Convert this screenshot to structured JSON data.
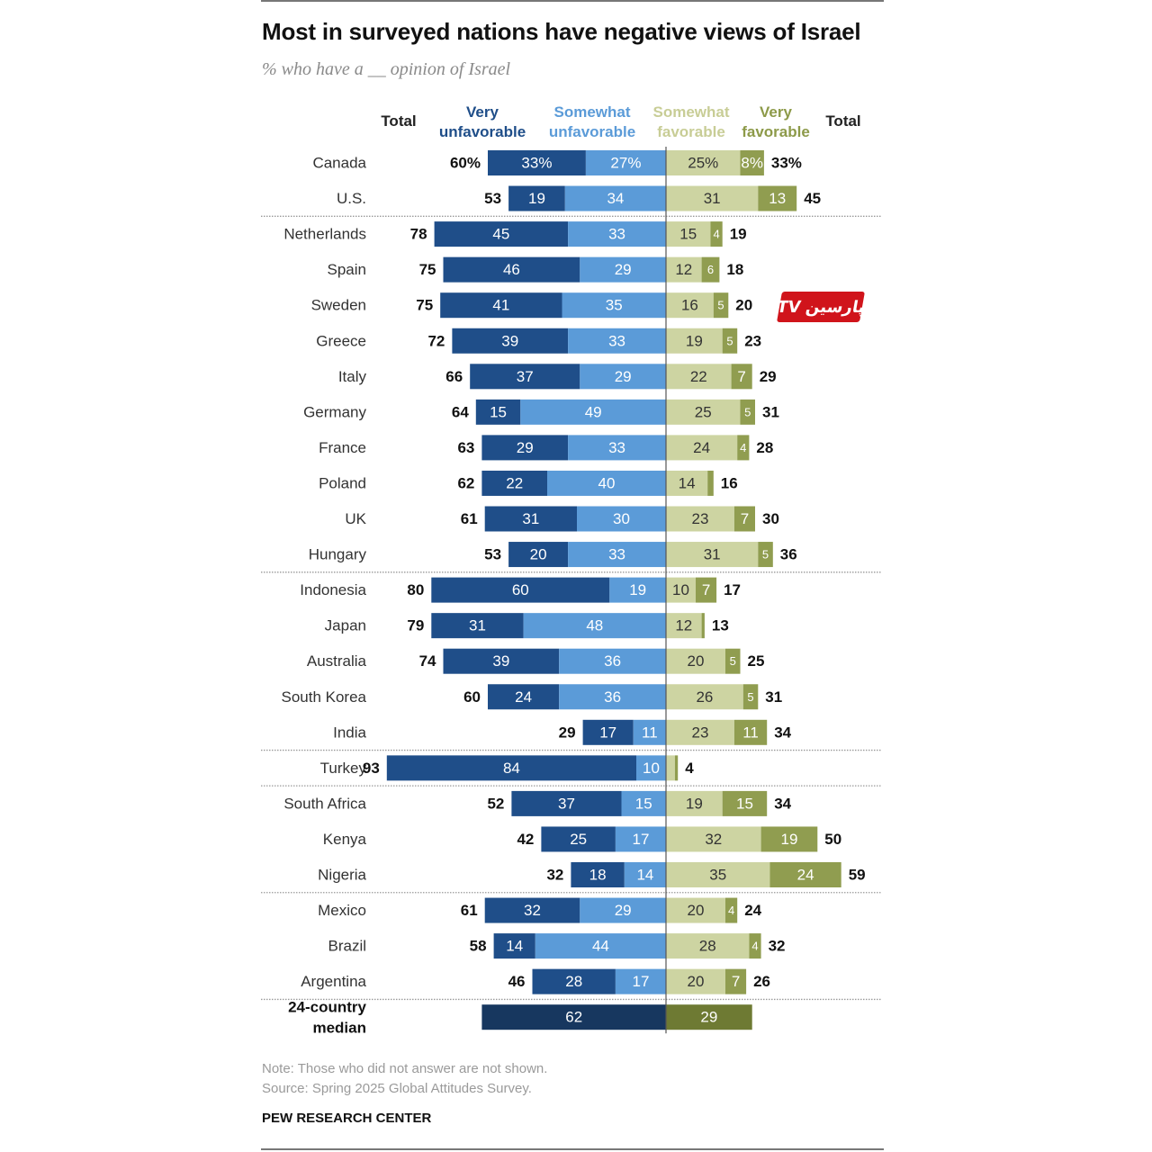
{
  "title": "Most in surveyed nations have negative views of Israel",
  "subtitle": "% who have a __ opinion of Israel",
  "headers": {
    "total_left": "Total",
    "very_unfavorable": [
      "Very",
      "unfavorable"
    ],
    "somewhat_unfavorable": [
      "Somewhat",
      "unfavorable"
    ],
    "somewhat_favorable": [
      "Somewhat",
      "favorable"
    ],
    "very_favorable": [
      "Very",
      "favorable"
    ],
    "total_right": "Total"
  },
  "note": "Note: Those who did not answer are not shown.",
  "source": "Source: Spring 2025 Global Attitudes Survey.",
  "branding": "PEW RESEARCH CENTER",
  "watermark_text": "پارسین",
  "watermark_logo": "TV",
  "colors": {
    "very_unfavorable": "#1f4e89",
    "somewhat_unfavorable": "#5b9bd8",
    "somewhat_favorable": "#cdd4a2",
    "very_favorable": "#909d50",
    "median_unfavorable": "#17375f",
    "median_favorable": "#6e7a33",
    "somewhat_favorable_header": "#c8cd96",
    "very_favorable_header": "#8d9a49",
    "very_unfavorable_header": "#1f4e89",
    "somewhat_unfavorable_header": "#5b9bd8"
  },
  "chart_data": {
    "type": "bar",
    "orientation": "horizontal-diverging",
    "title": "Most in surveyed nations have negative views of Israel",
    "subtitle": "% who have a __ opinion of Israel",
    "series_names": [
      "Very unfavorable",
      "Somewhat unfavorable",
      "Somewhat favorable",
      "Very favorable"
    ],
    "groups": [
      [
        {
          "country": "Canada",
          "total_unfav": "60%",
          "very_unfav": 33,
          "very_unfav_label": "33%",
          "somewhat_unfav": 27,
          "somewhat_unfav_label": "27%",
          "somewhat_fav": 25,
          "somewhat_fav_label": "25%",
          "very_fav": 8,
          "very_fav_label": "8%",
          "total_fav": "33%"
        },
        {
          "country": "U.S.",
          "total_unfav": "53",
          "very_unfav": 19,
          "somewhat_unfav": 34,
          "somewhat_fav": 31,
          "very_fav": 13,
          "total_fav": "45"
        }
      ],
      [
        {
          "country": "Netherlands",
          "total_unfav": "78",
          "very_unfav": 45,
          "somewhat_unfav": 33,
          "somewhat_fav": 15,
          "very_fav": 4,
          "total_fav": "19"
        },
        {
          "country": "Spain",
          "total_unfav": "75",
          "very_unfav": 46,
          "somewhat_unfav": 29,
          "somewhat_fav": 12,
          "very_fav": 6,
          "total_fav": "18"
        },
        {
          "country": "Sweden",
          "total_unfav": "75",
          "very_unfav": 41,
          "somewhat_unfav": 35,
          "somewhat_fav": 16,
          "very_fav": 5,
          "total_fav": "20"
        },
        {
          "country": "Greece",
          "total_unfav": "72",
          "very_unfav": 39,
          "somewhat_unfav": 33,
          "somewhat_fav": 19,
          "very_fav": 5,
          "total_fav": "23"
        },
        {
          "country": "Italy",
          "total_unfav": "66",
          "very_unfav": 37,
          "somewhat_unfav": 29,
          "somewhat_fav": 22,
          "very_fav": 7,
          "total_fav": "29"
        },
        {
          "country": "Germany",
          "total_unfav": "64",
          "very_unfav": 15,
          "somewhat_unfav": 49,
          "somewhat_fav": 25,
          "very_fav": 5,
          "total_fav": "31"
        },
        {
          "country": "France",
          "total_unfav": "63",
          "very_unfav": 29,
          "somewhat_unfav": 33,
          "somewhat_fav": 24,
          "very_fav": 4,
          "total_fav": "28"
        },
        {
          "country": "Poland",
          "total_unfav": "62",
          "very_unfav": 22,
          "somewhat_unfav": 40,
          "somewhat_fav": 14,
          "very_fav": 2,
          "very_fav_label": "",
          "total_fav": "16"
        },
        {
          "country": "UK",
          "total_unfav": "61",
          "very_unfav": 31,
          "somewhat_unfav": 30,
          "somewhat_fav": 23,
          "very_fav": 7,
          "total_fav": "30"
        },
        {
          "country": "Hungary",
          "total_unfav": "53",
          "very_unfav": 20,
          "somewhat_unfav": 33,
          "somewhat_fav": 31,
          "very_fav": 5,
          "total_fav": "36"
        }
      ],
      [
        {
          "country": "Indonesia",
          "total_unfav": "80",
          "very_unfav": 60,
          "somewhat_unfav": 19,
          "somewhat_fav": 10,
          "very_fav": 7,
          "total_fav": "17"
        },
        {
          "country": "Japan",
          "total_unfav": "79",
          "very_unfav": 31,
          "somewhat_unfav": 48,
          "somewhat_fav": 12,
          "very_fav": 1,
          "very_fav_label": "",
          "total_fav": "13"
        },
        {
          "country": "Australia",
          "total_unfav": "74",
          "very_unfav": 39,
          "somewhat_unfav": 36,
          "somewhat_fav": 20,
          "very_fav": 5,
          "total_fav": "25"
        },
        {
          "country": "South Korea",
          "total_unfav": "60",
          "very_unfav": 24,
          "somewhat_unfav": 36,
          "somewhat_fav": 26,
          "very_fav": 5,
          "total_fav": "31"
        },
        {
          "country": "India",
          "total_unfav": "29",
          "very_unfav": 17,
          "somewhat_unfav": 11,
          "somewhat_fav": 23,
          "very_fav": 11,
          "total_fav": "34"
        }
      ],
      [
        {
          "country": "Turkey",
          "total_unfav": "93",
          "very_unfav": 84,
          "somewhat_unfav": 10,
          "somewhat_fav": 3,
          "somewhat_fav_label": "",
          "very_fav": 1,
          "very_fav_label": "",
          "total_fav": "4"
        }
      ],
      [
        {
          "country": "South Africa",
          "total_unfav": "52",
          "very_unfav": 37,
          "somewhat_unfav": 15,
          "somewhat_fav": 19,
          "very_fav": 15,
          "total_fav": "34"
        },
        {
          "country": "Kenya",
          "total_unfav": "42",
          "very_unfav": 25,
          "somewhat_unfav": 17,
          "somewhat_fav": 32,
          "very_fav": 19,
          "total_fav": "50"
        },
        {
          "country": "Nigeria",
          "total_unfav": "32",
          "very_unfav": 18,
          "somewhat_unfav": 14,
          "somewhat_fav": 35,
          "very_fav": 24,
          "total_fav": "59"
        }
      ],
      [
        {
          "country": "Mexico",
          "total_unfav": "61",
          "very_unfav": 32,
          "somewhat_unfav": 29,
          "somewhat_fav": 20,
          "very_fav": 4,
          "total_fav": "24"
        },
        {
          "country": "Brazil",
          "total_unfav": "58",
          "very_unfav": 14,
          "somewhat_unfav": 44,
          "somewhat_fav": 28,
          "very_fav": 4,
          "total_fav": "32"
        },
        {
          "country": "Argentina",
          "total_unfav": "46",
          "very_unfav": 28,
          "somewhat_unfav": 17,
          "somewhat_fav": 20,
          "very_fav": 7,
          "total_fav": "26"
        }
      ]
    ],
    "median": {
      "label_lines": [
        "24-country",
        "median"
      ],
      "unfavorable": 62,
      "favorable": 29
    }
  }
}
